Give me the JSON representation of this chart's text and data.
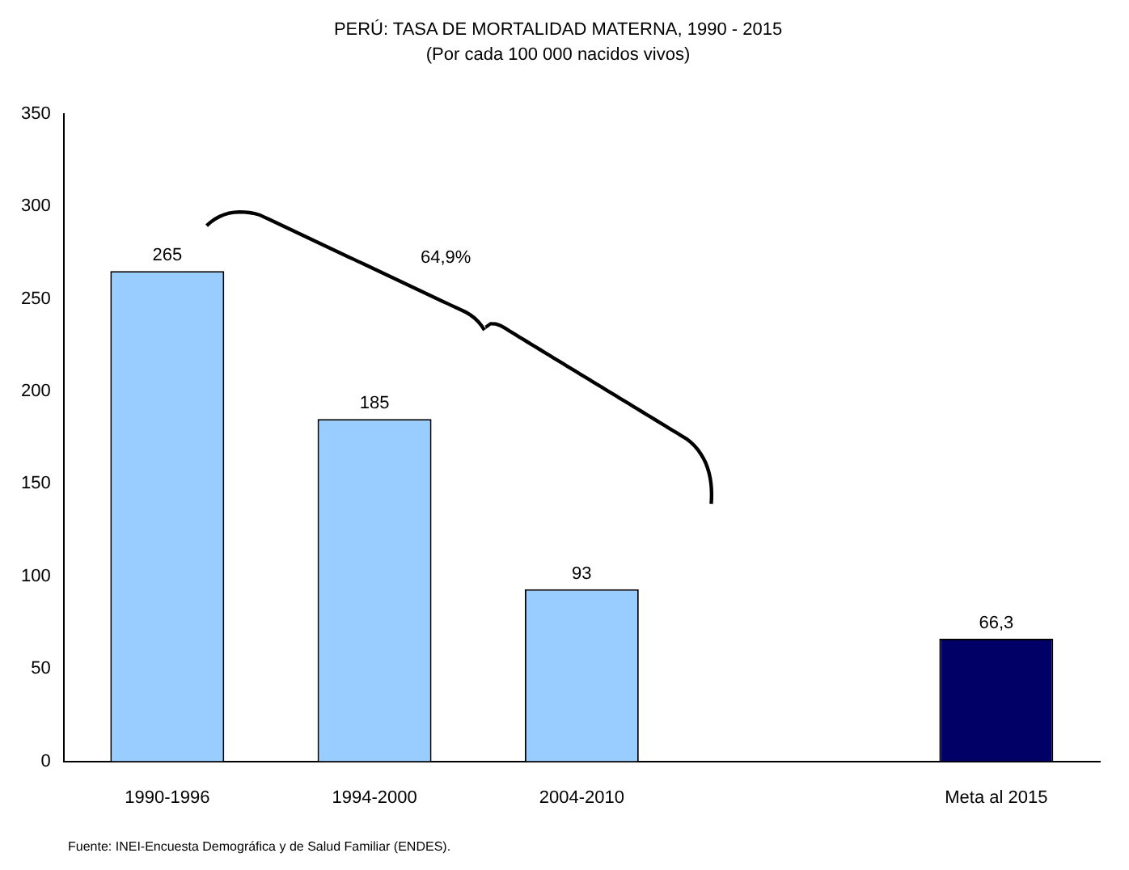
{
  "chart_data": {
    "type": "bar",
    "title": "PERÚ: TASA DE MORTALIDAD MATERNA, 1990 - 2015",
    "subtitle": "(Por cada 100 000 nacidos vivos)",
    "categories": [
      "1990-1996",
      "1994-2000",
      "2004-2010",
      null,
      "Meta al 2015"
    ],
    "values": [
      265,
      185,
      93,
      null,
      66.3
    ],
    "value_labels": [
      "265",
      "185",
      "93",
      null,
      "66,3"
    ],
    "colors": [
      "#99ccff",
      "#99ccff",
      "#99ccff",
      "#99ccff",
      "#000066"
    ],
    "ylim": [
      0,
      350
    ],
    "yticks": [
      0,
      50,
      100,
      150,
      200,
      250,
      300,
      350
    ],
    "grid": false,
    "legend": false,
    "annotations": [
      "64,9%",
      "Fuente: INEI-Encuesta Demográfica y de Salud Familiar (ENDES)."
    ]
  }
}
